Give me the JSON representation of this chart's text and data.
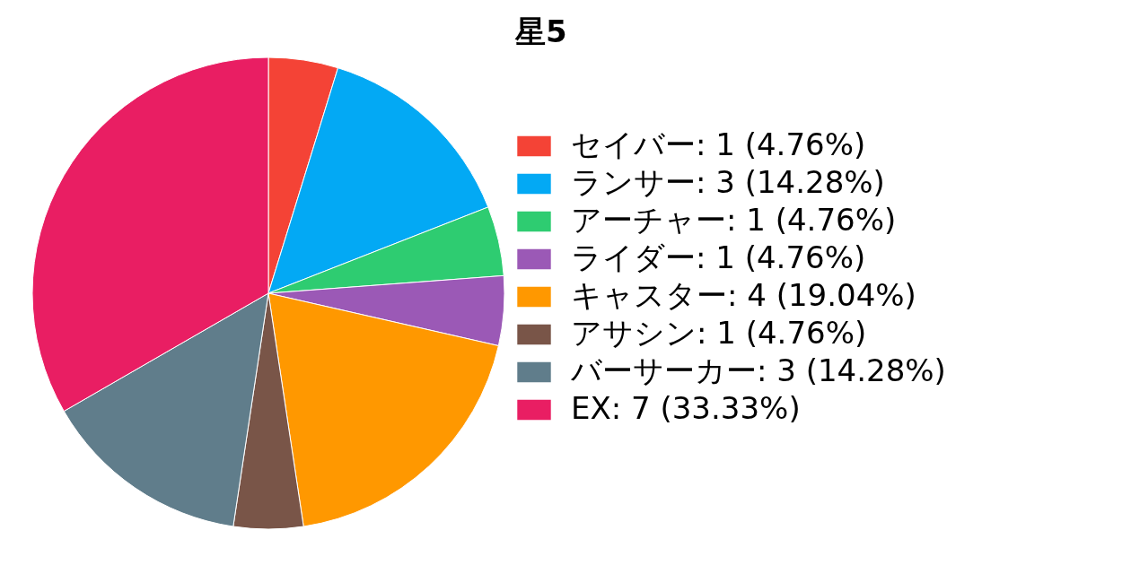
{
  "chart_data": {
    "type": "pie",
    "title": "星5",
    "categories": [
      "セイバー: 1 (4.76%)",
      "ランサー: 3 (14.28%)",
      "アーチャー: 1 (4.76%)",
      "ライダー: 1 (4.76%)",
      "キャスター: 4 (19.04%)",
      "アサシン: 1 (4.76%)",
      "バーサーカー: 3 (14.28%)",
      "EX: 7 (33.33%)"
    ],
    "values": [
      1,
      3,
      1,
      1,
      4,
      1,
      3,
      7
    ],
    "colors": [
      "#f44336",
      "#03a9f4",
      "#2ecc71",
      "#9b59b6",
      "#ff9800",
      "#795548",
      "#607d8b",
      "#e91e63"
    ],
    "legend": "right"
  }
}
